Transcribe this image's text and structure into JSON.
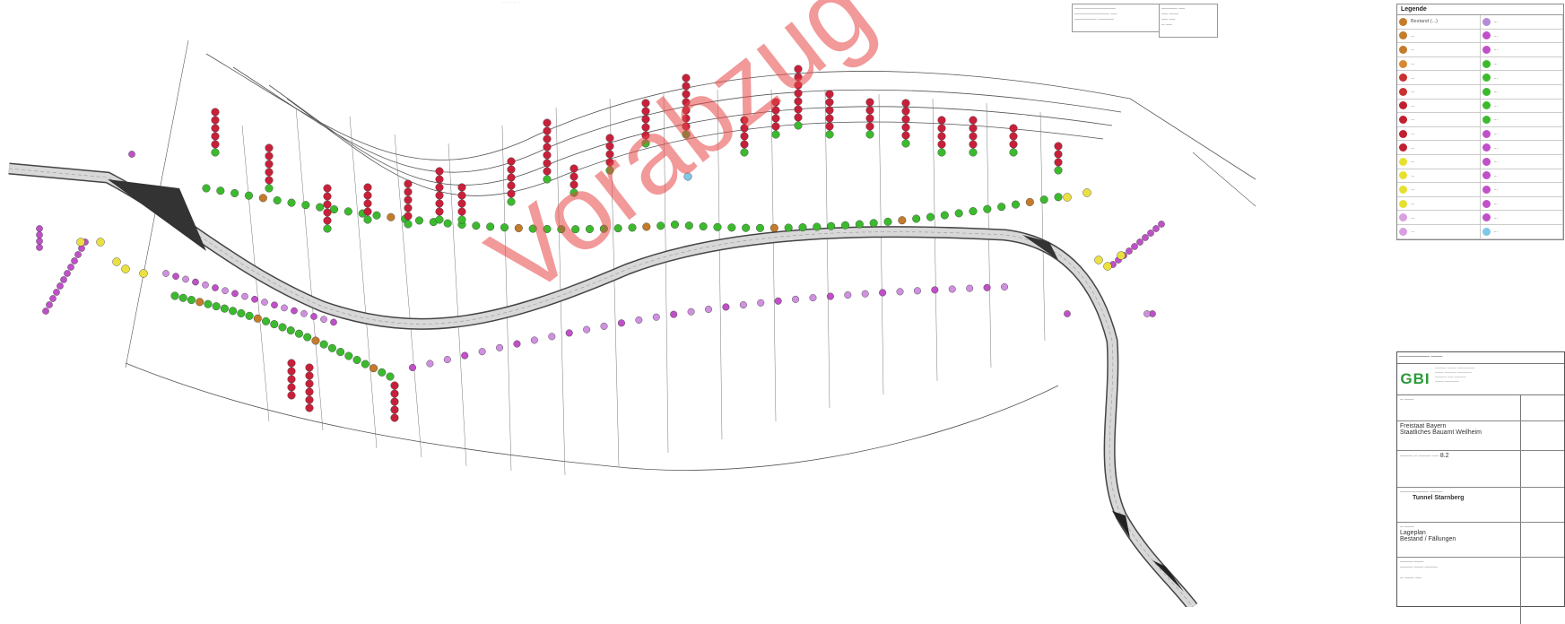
{
  "watermark": "Vorabzug",
  "legend": {
    "title": "Legende",
    "items": [
      {
        "color": "#c47b2a",
        "text": "Bestand (...)"
      },
      {
        "color": "#b48bd6",
        "text": "..."
      },
      {
        "color": "#c47b2a",
        "text": "..."
      },
      {
        "color": "#c050c8",
        "text": "..."
      },
      {
        "color": "#c47b2a",
        "text": "..."
      },
      {
        "color": "#c050c8",
        "text": "..."
      },
      {
        "color": "#d88a32",
        "text": "..."
      },
      {
        "color": "#3cba2e",
        "text": "..."
      },
      {
        "color": "#c83232",
        "text": "..."
      },
      {
        "color": "#3cba2e",
        "text": "..."
      },
      {
        "color": "#c83232",
        "text": "..."
      },
      {
        "color": "#3cba2e",
        "text": "..."
      },
      {
        "color": "#c02030",
        "text": "..."
      },
      {
        "color": "#3cba2e",
        "text": "..."
      },
      {
        "color": "#c02030",
        "text": "..."
      },
      {
        "color": "#3cba2e",
        "text": "..."
      },
      {
        "color": "#c02030",
        "text": "..."
      },
      {
        "color": "#c050c8",
        "text": "..."
      },
      {
        "color": "#c02030",
        "text": "..."
      },
      {
        "color": "#c050c8",
        "text": "..."
      },
      {
        "color": "#e8e030",
        "text": "..."
      },
      {
        "color": "#c050c8",
        "text": "..."
      },
      {
        "color": "#e8e030",
        "text": "..."
      },
      {
        "color": "#c050c8",
        "text": "..."
      },
      {
        "color": "#e8e030",
        "text": "..."
      },
      {
        "color": "#c050c8",
        "text": "..."
      },
      {
        "color": "#e8e030",
        "text": "..."
      },
      {
        "color": "#c050c8",
        "text": "..."
      },
      {
        "color": "#d8a0e0",
        "text": "..."
      },
      {
        "color": "#c050c8",
        "text": "..."
      },
      {
        "color": "#d8a0e0",
        "text": "..."
      },
      {
        "color": "#7fc8e8",
        "text": "..."
      }
    ]
  },
  "titleblock": {
    "logo": "GBI",
    "project_title": "Tunnel Starnberg",
    "client": "Freistaat Bayern",
    "client_sub": "Staatliches Bauamt Weilheim",
    "plan_title": "Lageplan",
    "plan_sub": "Bestand / Fällungen",
    "number": "8.2"
  },
  "map": {
    "green": "#3cba2e",
    "red": "#c8203a",
    "orange": "#c47b2a",
    "purple": "#c050c8",
    "lilac": "#d090e0",
    "yellow": "#ece040",
    "road_fill": "#d8d8d8",
    "road_stroke": "#444444"
  }
}
